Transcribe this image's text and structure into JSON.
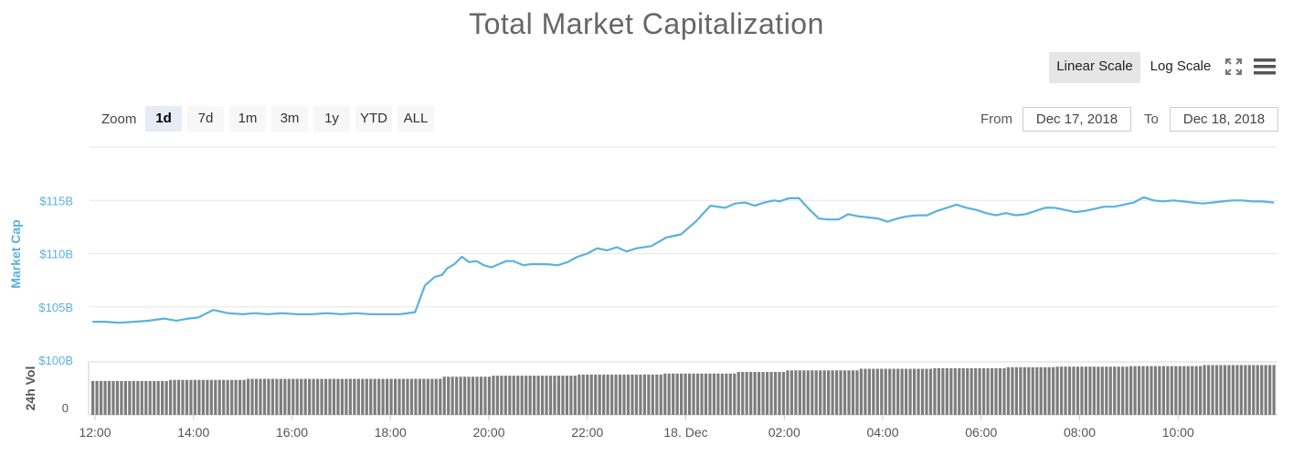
{
  "chart_data": {
    "type": "line",
    "title": "Total Market Capitalization",
    "ylabel": "Market Cap",
    "volume_label": "24h Vol",
    "y_ticks": [
      "$100B",
      "$105B",
      "$110B",
      "$115B"
    ],
    "y_tick_values": [
      100,
      105,
      110,
      115
    ],
    "ylim": [
      100,
      120
    ],
    "volume_ticks": [
      "0"
    ],
    "x_ticks": [
      "12:00",
      "14:00",
      "16:00",
      "18:00",
      "20:00",
      "22:00",
      "18. Dec",
      "02:00",
      "04:00",
      "06:00",
      "08:00",
      "10:00"
    ],
    "x_tick_hours": [
      0,
      2,
      4,
      6,
      8,
      10,
      12,
      14,
      16,
      18,
      20,
      22
    ],
    "x_range_hours": [
      -0.1,
      24.0
    ],
    "series": [
      {
        "color": "#5bb1de",
        "x_hours": [
          -0.05,
          0.2,
          0.5,
          0.8,
          1.1,
          1.4,
          1.65,
          1.9,
          2.1,
          2.4,
          2.7,
          3.0,
          3.25,
          3.5,
          3.8,
          4.1,
          4.4,
          4.7,
          5.0,
          5.3,
          5.6,
          5.9,
          6.2,
          6.5,
          6.7,
          6.9,
          7.05,
          7.15,
          7.3,
          7.45,
          7.6,
          7.75,
          7.9,
          8.05,
          8.2,
          8.35,
          8.5,
          8.7,
          8.85,
          9.0,
          9.2,
          9.4,
          9.6,
          9.8,
          10.0,
          10.2,
          10.4,
          10.6,
          10.8,
          11.0,
          11.3,
          11.6,
          11.9,
          12.2,
          12.5,
          12.8,
          13.0,
          13.2,
          13.4,
          13.6,
          13.8,
          13.9,
          14.1,
          14.3,
          14.5,
          14.7,
          14.9,
          15.1,
          15.3,
          15.5,
          15.7,
          15.9,
          16.1,
          16.3,
          16.5,
          16.7,
          16.9,
          17.1,
          17.3,
          17.5,
          17.7,
          17.9,
          18.1,
          18.3,
          18.5,
          18.7,
          18.9,
          19.1,
          19.3,
          19.5,
          19.7,
          19.9,
          20.1,
          20.3,
          20.5,
          20.7,
          20.9,
          21.1,
          21.3,
          21.5,
          21.7,
          21.9,
          22.1,
          22.3,
          22.5,
          22.7,
          22.9,
          23.1,
          23.3,
          23.5,
          23.7,
          23.95
        ],
        "values": [
          103.6,
          103.6,
          103.5,
          103.6,
          103.7,
          103.9,
          103.7,
          103.9,
          104.0,
          104.7,
          104.4,
          104.3,
          104.4,
          104.3,
          104.4,
          104.3,
          104.3,
          104.4,
          104.3,
          104.4,
          104.3,
          104.3,
          104.3,
          104.5,
          107.0,
          107.8,
          108.0,
          108.6,
          109.0,
          109.7,
          109.2,
          109.3,
          108.9,
          108.7,
          109.0,
          109.3,
          109.3,
          108.9,
          109.0,
          109.0,
          109.0,
          108.9,
          109.2,
          109.7,
          110.0,
          110.5,
          110.3,
          110.6,
          110.2,
          110.5,
          110.7,
          111.5,
          111.8,
          113.0,
          114.5,
          114.3,
          114.7,
          114.8,
          114.5,
          114.8,
          115.0,
          114.9,
          115.2,
          115.2,
          114.2,
          113.3,
          113.2,
          113.2,
          113.7,
          113.5,
          113.4,
          113.3,
          113.0,
          113.3,
          113.5,
          113.6,
          113.6,
          114.0,
          114.3,
          114.6,
          114.3,
          114.1,
          113.8,
          113.6,
          113.8,
          113.6,
          113.7,
          114.0,
          114.3,
          114.3,
          114.1,
          113.9,
          114.0,
          114.2,
          114.4,
          114.4,
          114.6,
          114.8,
          115.3,
          115.0,
          114.9,
          115.0,
          114.9,
          114.8,
          114.7,
          114.8,
          114.9,
          115.0,
          115.0,
          114.9,
          114.9,
          114.8
        ]
      },
      {
        "name": "24h Vol",
        "color": "#7d7d7d",
        "volume_levels": [
          [
            0,
            0.64
          ],
          [
            1.5,
            0.66
          ],
          [
            3.0,
            0.68
          ],
          [
            4.5,
            0.68
          ],
          [
            7.0,
            0.72
          ],
          [
            8.0,
            0.74
          ],
          [
            9.8,
            0.76
          ],
          [
            11.5,
            0.78
          ],
          [
            13.0,
            0.81
          ],
          [
            14.0,
            0.84
          ],
          [
            15.5,
            0.87
          ],
          [
            17.0,
            0.88
          ],
          [
            18.5,
            0.9
          ],
          [
            19.5,
            0.91
          ],
          [
            21.0,
            0.92
          ],
          [
            22.5,
            0.94
          ]
        ]
      }
    ]
  },
  "controls": {
    "linear_scale": "Linear Scale",
    "log_scale": "Log Scale",
    "zoom_label": "Zoom",
    "zoom_options": [
      "1d",
      "7d",
      "1m",
      "3m",
      "1y",
      "YTD",
      "ALL"
    ],
    "zoom_selected": "1d",
    "from_label": "From",
    "from_value": "Dec 17, 2018",
    "to_label": "To",
    "to_value": "Dec 18, 2018"
  }
}
